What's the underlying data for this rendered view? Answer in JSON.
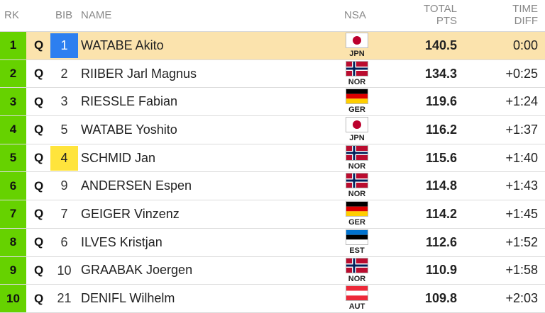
{
  "header": {
    "rk": "RK",
    "bib": "BIB",
    "name": "NAME",
    "nsa": "NSA",
    "total_pts_line1": "TOTAL",
    "total_pts_line2": "PTS",
    "time_diff_line1": "TIME",
    "time_diff_line2": "DIFF"
  },
  "colors": {
    "rank_green": "#66d200",
    "leader_row": "#fbe3ad",
    "bib_blue": "#2d7ff0",
    "bib_yellow": "#ffe43c"
  },
  "rows": [
    {
      "rk": "1",
      "q": "Q",
      "bib": "1",
      "bib_style": "blue",
      "name": "WATABE Akito",
      "nsa": "JPN",
      "flag": "jpn-flag-icon",
      "pts": "140.5",
      "diff": "0:00"
    },
    {
      "rk": "2",
      "q": "Q",
      "bib": "2",
      "bib_style": "",
      "name": "RIIBER Jarl Magnus",
      "nsa": "NOR",
      "flag": "nor-flag-icon",
      "pts": "134.3",
      "diff": "+0:25"
    },
    {
      "rk": "3",
      "q": "Q",
      "bib": "3",
      "bib_style": "",
      "name": "RIESSLE Fabian",
      "nsa": "GER",
      "flag": "ger-flag-icon",
      "pts": "119.6",
      "diff": "+1:24"
    },
    {
      "rk": "4",
      "q": "Q",
      "bib": "5",
      "bib_style": "",
      "name": "WATABE Yoshito",
      "nsa": "JPN",
      "flag": "jpn-flag-icon",
      "pts": "116.2",
      "diff": "+1:37"
    },
    {
      "rk": "5",
      "q": "Q",
      "bib": "4",
      "bib_style": "yellow",
      "name": "SCHMID Jan",
      "nsa": "NOR",
      "flag": "nor-flag-icon",
      "pts": "115.6",
      "diff": "+1:40"
    },
    {
      "rk": "6",
      "q": "Q",
      "bib": "9",
      "bib_style": "",
      "name": "ANDERSEN Espen",
      "nsa": "NOR",
      "flag": "nor-flag-icon",
      "pts": "114.8",
      "diff": "+1:43"
    },
    {
      "rk": "7",
      "q": "Q",
      "bib": "7",
      "bib_style": "",
      "name": "GEIGER Vinzenz",
      "nsa": "GER",
      "flag": "ger-flag-icon",
      "pts": "114.2",
      "diff": "+1:45"
    },
    {
      "rk": "8",
      "q": "Q",
      "bib": "6",
      "bib_style": "",
      "name": "ILVES Kristjan",
      "nsa": "EST",
      "flag": "est-flag-icon",
      "pts": "112.6",
      "diff": "+1:52"
    },
    {
      "rk": "9",
      "q": "Q",
      "bib": "10",
      "bib_style": "",
      "name": "GRAABAK Joergen",
      "nsa": "NOR",
      "flag": "nor-flag-icon",
      "pts": "110.9",
      "diff": "+1:58"
    },
    {
      "rk": "10",
      "q": "Q",
      "bib": "21",
      "bib_style": "",
      "name": "DENIFL Wilhelm",
      "nsa": "AUT",
      "flag": "aut-flag-icon",
      "pts": "109.8",
      "diff": "+2:03"
    }
  ]
}
